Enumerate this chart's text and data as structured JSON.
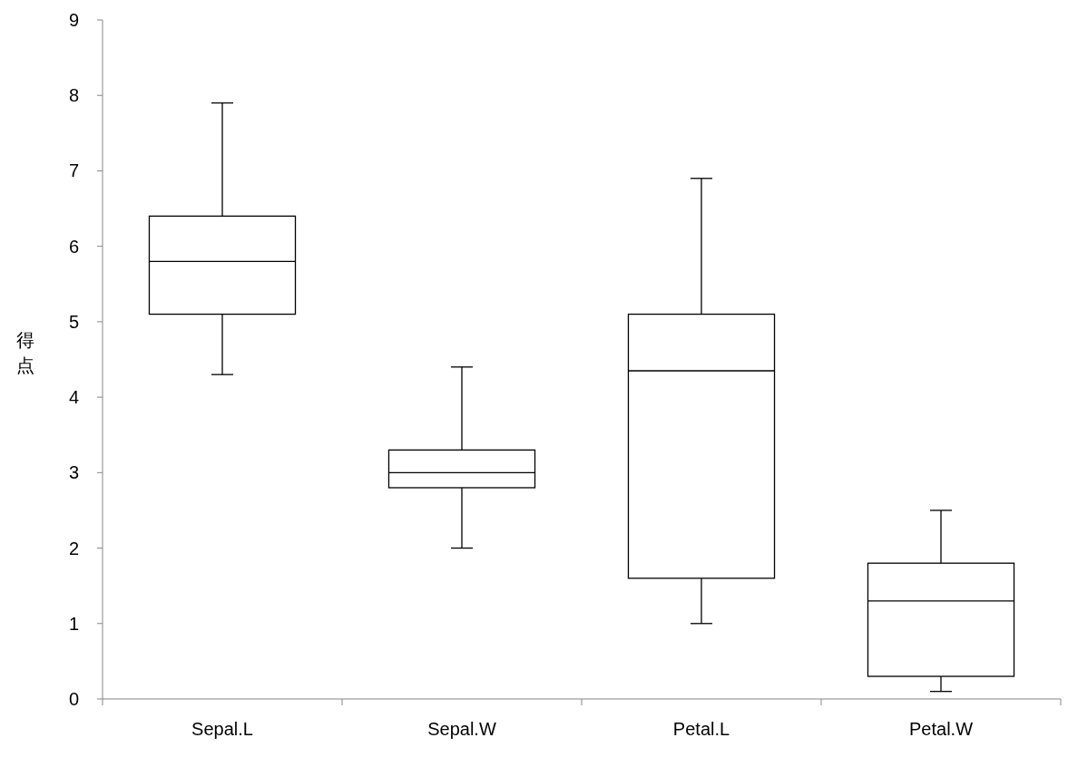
{
  "chart_data": {
    "type": "box",
    "ylabel": "得点",
    "categories": [
      "Sepal.L",
      "Sepal.W",
      "Petal.L",
      "Petal.W"
    ],
    "boxes": [
      {
        "low": 4.3,
        "q1": 5.1,
        "median": 5.8,
        "q3": 6.4,
        "high": 7.9
      },
      {
        "low": 2.0,
        "q1": 2.8,
        "median": 3.0,
        "q3": 3.3,
        "high": 4.4
      },
      {
        "low": 1.0,
        "q1": 1.6,
        "median": 4.35,
        "q3": 5.1,
        "high": 6.9
      },
      {
        "low": 0.1,
        "q1": 0.3,
        "median": 1.3,
        "q3": 1.8,
        "high": 2.5
      }
    ],
    "color": "#000000",
    "ylim": [
      0,
      9
    ],
    "yticks": [
      0,
      1,
      2,
      3,
      4,
      5,
      6,
      7,
      8,
      9
    ],
    "grid": false
  }
}
